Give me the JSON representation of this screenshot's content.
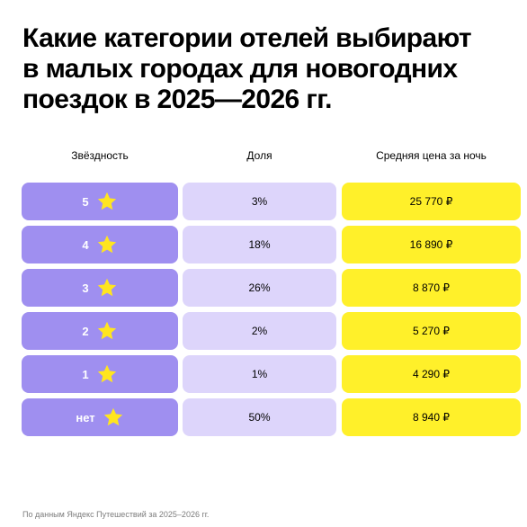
{
  "title_lines": [
    "Какие категории отелей выбирают",
    "в малых городах для новогодних",
    "поездок в 2025—2026 гг."
  ],
  "headers": {
    "stars": "Звёздность",
    "share": "Доля",
    "price": "Средняя цена за ночь"
  },
  "rows": [
    {
      "stars": "5",
      "share": "3%",
      "price": "25 770 ₽"
    },
    {
      "stars": "4",
      "share": "18%",
      "price": "16 890 ₽"
    },
    {
      "stars": "3",
      "share": "26%",
      "price": "8 870 ₽"
    },
    {
      "stars": "2",
      "share": "2%",
      "price": "5 270 ₽"
    },
    {
      "stars": "1",
      "share": "1%",
      "price": "4 290 ₽"
    },
    {
      "stars": "нет",
      "share": "50%",
      "price": "8 940 ₽"
    }
  ],
  "footnote": "По данным Яндекс Путешествий за 2025–2026 гг.",
  "colors": {
    "stars_cell": "#9f8ff0",
    "share_cell": "#ddd5fb",
    "price_cell": "#fff02a",
    "star_icon": "#ffe51f"
  },
  "icons": {
    "rating": "star-icon"
  }
}
